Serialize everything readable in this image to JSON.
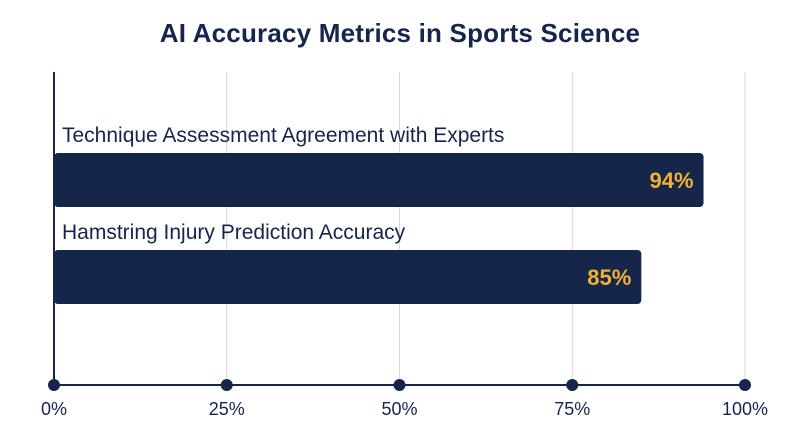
{
  "chart_data": {
    "type": "bar",
    "orientation": "horizontal",
    "title": "AI Accuracy Metrics in Sports Science",
    "xlabel": "",
    "ylabel": "",
    "categories": [
      "Technique Assessment Agreement with Experts",
      "Hamstring Injury Prediction Accuracy"
    ],
    "values": [
      94,
      85
    ],
    "value_labels": [
      "94%",
      "85%"
    ],
    "xlim": [
      0,
      100
    ],
    "x_ticks": [
      0,
      25,
      50,
      75,
      100
    ],
    "x_tick_labels": [
      "0%",
      "25%",
      "50%",
      "75%",
      "100%"
    ],
    "grid": true,
    "legend": "none",
    "colors": {
      "bar": "#15264a",
      "value_label": "#f2b134",
      "text": "#15264a",
      "grid": "#d9d9d9",
      "axis": "#15264a"
    }
  }
}
